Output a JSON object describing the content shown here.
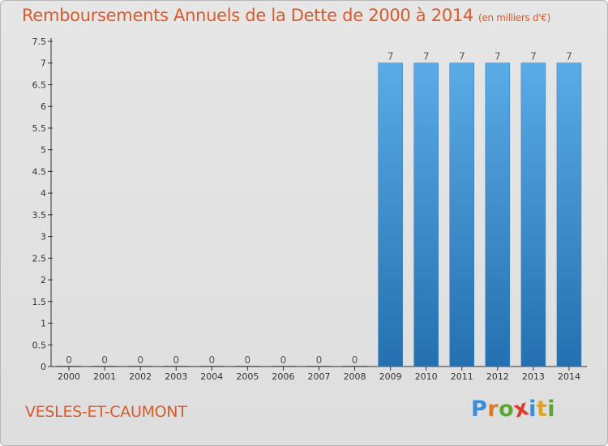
{
  "chart_data": {
    "type": "bar",
    "title": "Remboursements Annuels de la Dette de 2000 à 2014",
    "unit": "(en milliers d'€)",
    "categories": [
      "2000",
      "2001",
      "2002",
      "2003",
      "2004",
      "2005",
      "2006",
      "2007",
      "2008",
      "2009",
      "2010",
      "2011",
      "2012",
      "2013",
      "2014"
    ],
    "values": [
      0,
      0,
      0,
      0,
      0,
      0,
      0,
      0,
      0,
      7,
      7,
      7,
      7,
      7,
      7
    ],
    "data_labels": [
      "0",
      "0",
      "0",
      "0",
      "0",
      "0",
      "0",
      "0",
      "0",
      "7",
      "7",
      "7",
      "7",
      "7",
      "7"
    ],
    "yticks": [
      0,
      0.5,
      1,
      1.5,
      2,
      2.5,
      3,
      3.5,
      4,
      4.5,
      5,
      5.5,
      6,
      6.5,
      7,
      7.5
    ],
    "ytick_labels": [
      "0",
      "0.5",
      "1",
      "1.5",
      "2",
      "2.5",
      "3",
      "3.5",
      "4",
      "4.5",
      "5",
      "5.5",
      "6",
      "6.5",
      "7",
      "7.5"
    ],
    "ylim": [
      0,
      7.5
    ],
    "xlabel": "",
    "ylabel": "",
    "grid": false,
    "colors": {
      "bar_top": "#5aabe6",
      "bar_bottom": "#2470b0",
      "axis": "#333333",
      "accent": "#d95a2b"
    }
  },
  "footer": {
    "town": "VESLES-ET-CAUMONT",
    "logo_letters": [
      {
        "ch": "P",
        "color": "#3b8ed6"
      },
      {
        "ch": "r",
        "color": "#e07a1f"
      },
      {
        "ch": "o",
        "color": "#5aa832"
      },
      {
        "ch": "x",
        "color": "#e03a2f"
      },
      {
        "ch": "i",
        "color": "#3b8ed6"
      },
      {
        "ch": "t",
        "color": "#e0a21f"
      },
      {
        "ch": "i",
        "color": "#5aa832"
      }
    ]
  }
}
